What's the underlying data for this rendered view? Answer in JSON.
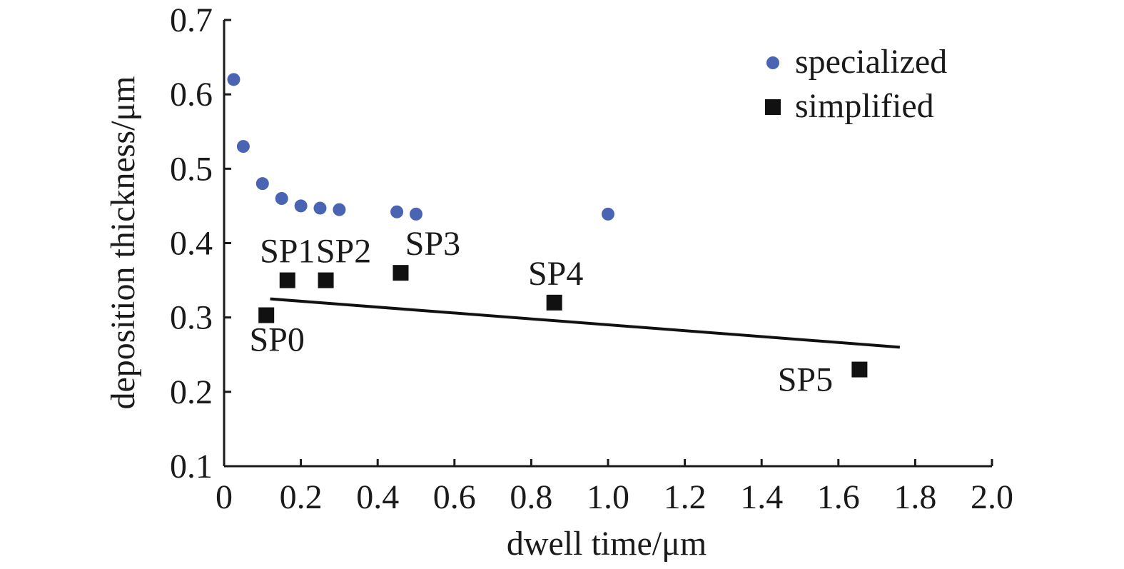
{
  "chart_data": {
    "type": "scatter",
    "xlabel": "dwell time/μm",
    "ylabel": "deposition thickness/μm",
    "xlim": [
      0,
      2.0
    ],
    "ylim": [
      0.1,
      0.7
    ],
    "x_ticks": [
      "0",
      "0.2",
      "0.4",
      "0.6",
      "0.8",
      "1.0",
      "1.2",
      "1.4",
      "1.6",
      "1.8",
      "2.0"
    ],
    "y_ticks": [
      "0.1",
      "0.2",
      "0.3",
      "0.4",
      "0.5",
      "0.6",
      "0.7"
    ],
    "grid": false,
    "legend_position": "top-right",
    "series": [
      {
        "name": "specialized",
        "marker": "circle",
        "color": "#4a64b4",
        "points": [
          {
            "x": 0.025,
            "y": 0.62
          },
          {
            "x": 0.05,
            "y": 0.53
          },
          {
            "x": 0.1,
            "y": 0.48
          },
          {
            "x": 0.15,
            "y": 0.46
          },
          {
            "x": 0.2,
            "y": 0.45
          },
          {
            "x": 0.25,
            "y": 0.447
          },
          {
            "x": 0.3,
            "y": 0.445
          },
          {
            "x": 0.45,
            "y": 0.442
          },
          {
            "x": 0.5,
            "y": 0.439
          },
          {
            "x": 1.0,
            "y": 0.439
          }
        ]
      },
      {
        "name": "simplified",
        "marker": "square",
        "color": "#111111",
        "points": [
          {
            "x": 0.11,
            "y": 0.303,
            "label": "SP0"
          },
          {
            "x": 0.165,
            "y": 0.35,
            "label": "SP1"
          },
          {
            "x": 0.265,
            "y": 0.35,
            "label": "SP2"
          },
          {
            "x": 0.46,
            "y": 0.36,
            "label": "SP3"
          },
          {
            "x": 0.86,
            "y": 0.32,
            "label": "SP4"
          },
          {
            "x": 1.655,
            "y": 0.23,
            "label": "SP5"
          }
        ]
      }
    ],
    "trendline": {
      "x": [
        0.12,
        1.76
      ],
      "y": [
        0.325,
        0.26
      ],
      "color": "#111111"
    }
  }
}
